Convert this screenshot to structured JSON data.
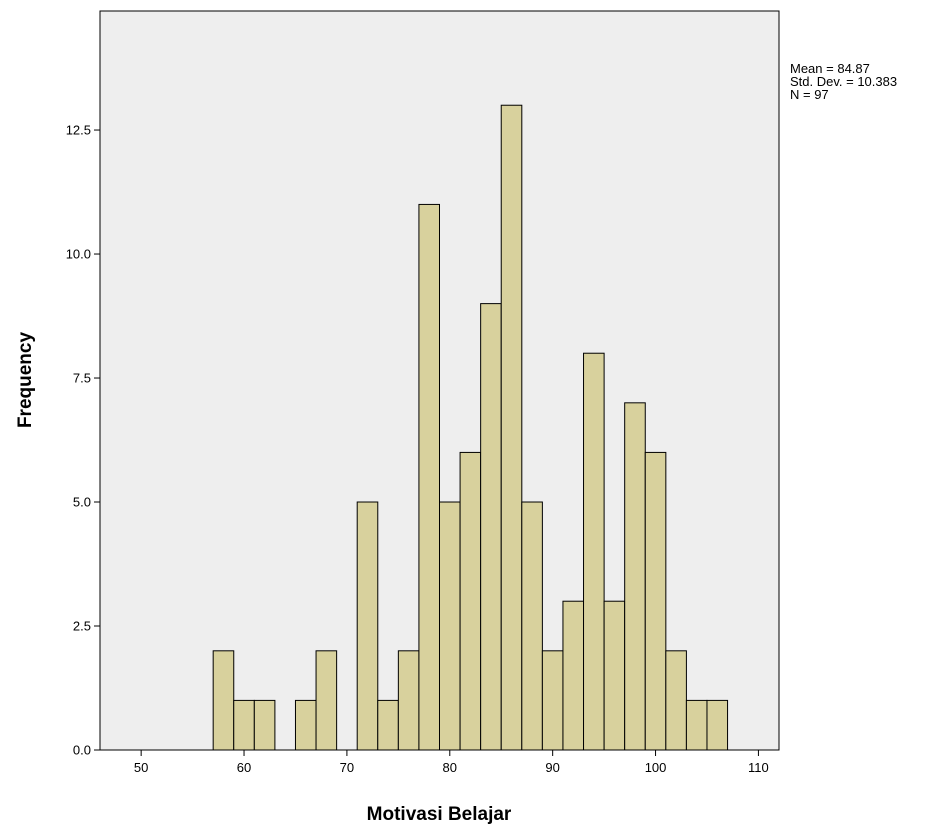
{
  "chart_data": {
    "type": "bar",
    "subtype": "histogram",
    "title": "",
    "xlabel": "Motivasi Belajar",
    "ylabel": "Frequency",
    "xlim": [
      46,
      112
    ],
    "ylim": [
      0,
      14.9
    ],
    "x_ticks": [
      50,
      60,
      70,
      80,
      90,
      100,
      110
    ],
    "x_tick_labels": [
      "50",
      "60",
      "70",
      "80",
      "90",
      "100",
      "110"
    ],
    "y_ticks": [
      0,
      2.5,
      5,
      7.5,
      10,
      12.5
    ],
    "y_tick_labels": [
      "0.0",
      "2.5",
      "5.0",
      "7.5",
      "10.0",
      "12.5"
    ],
    "bin_width": 2,
    "bins": [
      {
        "start": 57,
        "end": 59,
        "count": 2
      },
      {
        "start": 59,
        "end": 61,
        "count": 1
      },
      {
        "start": 61,
        "end": 63,
        "count": 1
      },
      {
        "start": 65,
        "end": 67,
        "count": 1
      },
      {
        "start": 67,
        "end": 69,
        "count": 2
      },
      {
        "start": 71,
        "end": 73,
        "count": 5
      },
      {
        "start": 73,
        "end": 75,
        "count": 1
      },
      {
        "start": 75,
        "end": 77,
        "count": 2
      },
      {
        "start": 77,
        "end": 79,
        "count": 11
      },
      {
        "start": 79,
        "end": 81,
        "count": 5
      },
      {
        "start": 81,
        "end": 83,
        "count": 6
      },
      {
        "start": 83,
        "end": 85,
        "count": 9
      },
      {
        "start": 85,
        "end": 87,
        "count": 13
      },
      {
        "start": 87,
        "end": 89,
        "count": 5
      },
      {
        "start": 89,
        "end": 91,
        "count": 2
      },
      {
        "start": 91,
        "end": 93,
        "count": 3
      },
      {
        "start": 93,
        "end": 95,
        "count": 8
      },
      {
        "start": 95,
        "end": 97,
        "count": 3
      },
      {
        "start": 97,
        "end": 99,
        "count": 7
      },
      {
        "start": 99,
        "end": 101,
        "count": 6
      },
      {
        "start": 101,
        "end": 103,
        "count": 2
      },
      {
        "start": 103,
        "end": 105,
        "count": 1
      },
      {
        "start": 105,
        "end": 107,
        "count": 1
      }
    ],
    "stats": {
      "mean": "Mean = 84.87",
      "std_dev": "Std. Dev. = 10.383",
      "n": "N = 97"
    },
    "grid": false,
    "colors": {
      "bar_fill": "#d8d19d",
      "bar_stroke": "#000000",
      "plot_background": "#eeeeee"
    }
  }
}
